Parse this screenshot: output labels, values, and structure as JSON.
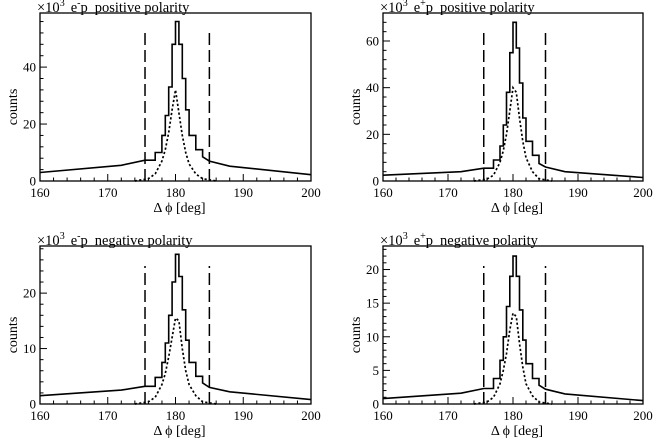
{
  "figure": {
    "xlabel": "Δ ϕ [deg]",
    "ylabel": "counts",
    "multiplier_prefix": "×10",
    "multiplier_exp": "3"
  },
  "chart_data": [
    {
      "type": "line",
      "particle_base": "e",
      "particle_charge": "-",
      "particle_target": "p",
      "polarity": "positive polarity",
      "xlabel": "Δ ϕ [deg]",
      "ylabel": "counts",
      "y_multiplier": "×10³",
      "xlim": [
        160,
        200
      ],
      "ylim": [
        0,
        59
      ],
      "xticks": [
        160,
        170,
        180,
        190,
        200
      ],
      "yticks": [
        0,
        20,
        40
      ],
      "cut_lines_x": [
        175.5,
        185
      ],
      "series": [
        {
          "style": "solid",
          "x": [
            160,
            172,
            175.5,
            177,
            178,
            178.5,
            179,
            179.5,
            180,
            180.5,
            181,
            181.5,
            182,
            183,
            184,
            185,
            188,
            200
          ],
          "y": [
            3,
            5.5,
            7.3,
            10,
            16,
            23,
            33,
            48,
            56,
            48,
            36,
            25,
            16,
            11,
            8.5,
            7,
            5.2,
            2.2
          ]
        },
        {
          "style": "dotted",
          "x": [
            174,
            176,
            177,
            178,
            178.5,
            179,
            179.5,
            180,
            180.5,
            181,
            181.5,
            182,
            183,
            184,
            186
          ],
          "y": [
            0,
            0.8,
            2.5,
            7,
            11,
            17,
            25,
            32,
            24,
            16,
            10,
            6,
            2.5,
            0.8,
            0
          ]
        }
      ]
    },
    {
      "type": "line",
      "particle_base": "e",
      "particle_charge": "+",
      "particle_target": "p",
      "polarity": "positive polarity",
      "xlabel": "Δ ϕ [deg]",
      "ylabel": "counts",
      "y_multiplier": "×10³",
      "xlim": [
        160,
        200
      ],
      "ylim": [
        0,
        72
      ],
      "xticks": [
        160,
        170,
        180,
        190,
        200
      ],
      "yticks": [
        0,
        20,
        40,
        60
      ],
      "cut_lines_x": [
        175.5,
        185
      ],
      "series": [
        {
          "style": "solid",
          "x": [
            160,
            172,
            175.5,
            177,
            178,
            178.5,
            179,
            179.5,
            180,
            180.5,
            181,
            181.5,
            182,
            183,
            184,
            185,
            188,
            200
          ],
          "y": [
            2.5,
            4,
            5.5,
            9,
            15,
            24,
            38,
            55,
            68,
            57,
            42,
            27,
            17,
            11,
            7.5,
            6,
            4,
            1.5
          ]
        },
        {
          "style": "dotted",
          "x": [
            174,
            176,
            177,
            178,
            178.5,
            179,
            179.5,
            180,
            180.5,
            181,
            181.5,
            182,
            183,
            184,
            186
          ],
          "y": [
            0,
            0.8,
            2.5,
            8,
            13,
            20,
            30,
            40,
            38,
            27,
            17,
            10,
            4,
            1,
            0
          ]
        }
      ]
    },
    {
      "type": "line",
      "particle_base": "e",
      "particle_charge": "-",
      "particle_target": "p",
      "polarity": "negative polarity",
      "xlabel": "Δ ϕ [deg]",
      "ylabel": "counts",
      "y_multiplier": "×10³",
      "xlim": [
        160,
        200
      ],
      "ylim": [
        0,
        28.5
      ],
      "xticks": [
        160,
        170,
        180,
        190,
        200
      ],
      "yticks": [
        0,
        10,
        20
      ],
      "cut_lines_x": [
        175.5,
        185
      ],
      "series": [
        {
          "style": "solid",
          "x": [
            160,
            172,
            175.5,
            177,
            178,
            178.5,
            179,
            179.5,
            180,
            180.5,
            181,
            181.5,
            182,
            183,
            184,
            185,
            188,
            200
          ],
          "y": [
            1.5,
            2.5,
            3.2,
            4.8,
            7.5,
            11,
            16,
            22,
            27,
            23,
            17,
            11.5,
            7.5,
            5,
            3.8,
            3,
            2.2,
            0.8
          ]
        },
        {
          "style": "dotted",
          "x": [
            174,
            176,
            177,
            178,
            178.5,
            179,
            179.5,
            180,
            180.5,
            181,
            181.5,
            182,
            183,
            184,
            186
          ],
          "y": [
            0,
            0.4,
            1.2,
            3.5,
            5.5,
            8.5,
            12,
            15.5,
            15,
            10,
            6,
            3.5,
            1.5,
            0.4,
            0
          ]
        }
      ]
    },
    {
      "type": "line",
      "particle_base": "e",
      "particle_charge": "+",
      "particle_target": "p",
      "polarity": "negative polarity",
      "xlabel": "Δ ϕ [deg]",
      "ylabel": "counts",
      "y_multiplier": "×10³",
      "xlim": [
        160,
        200
      ],
      "ylim": [
        0,
        23.5
      ],
      "xticks": [
        160,
        170,
        180,
        190,
        200
      ],
      "yticks": [
        0,
        5,
        10,
        15,
        20
      ],
      "cut_lines_x": [
        175.5,
        185
      ],
      "series": [
        {
          "style": "solid",
          "x": [
            160,
            172,
            175.5,
            177,
            178,
            178.5,
            179,
            179.5,
            180,
            180.5,
            181,
            181.5,
            182,
            183,
            184,
            185,
            188,
            200
          ],
          "y": [
            0.8,
            1.6,
            2.3,
            3.8,
            6.5,
            10,
            14.5,
            19,
            22,
            19,
            14,
            9.5,
            6,
            3.8,
            2.8,
            2.2,
            1.5,
            0.5
          ]
        },
        {
          "style": "dotted",
          "x": [
            174,
            176,
            177,
            178,
            178.5,
            179,
            179.5,
            180,
            180.5,
            181,
            181.5,
            182,
            183,
            184,
            186
          ],
          "y": [
            0,
            0.3,
            1,
            3,
            5,
            7.5,
            11,
            13.5,
            13,
            9,
            5.5,
            3,
            1.2,
            0.3,
            0
          ]
        }
      ]
    }
  ]
}
